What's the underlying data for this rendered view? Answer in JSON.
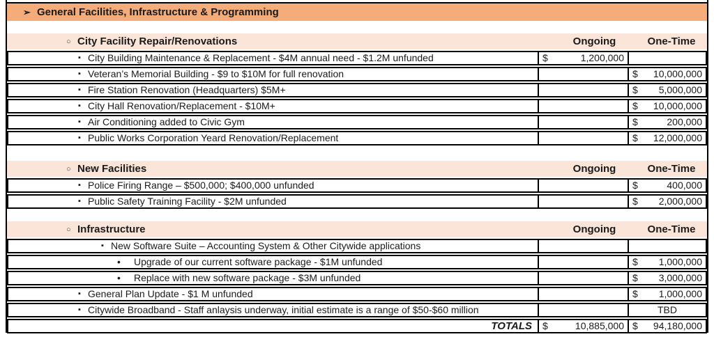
{
  "glyphs": {
    "arrow": "➢",
    "circle": "○",
    "square": "▪",
    "dot": "•"
  },
  "colors": {
    "title_band": "#F3AC7A",
    "section_band": "#FBE5D8",
    "border": "#000000"
  },
  "title": "General Facilities, Infrastructure & Programming",
  "column_headers": {
    "ongoing": "Ongoing",
    "one_time": "One-Time"
  },
  "sections": [
    {
      "header": "City Facility Repair/Renovations",
      "rows": [
        {
          "label": "City Building Maintenance & Replacement - $4M annual need - $1.2M unfunded",
          "ongoing_sym": "$",
          "ongoing_amt": "1,200,000"
        },
        {
          "label": "Veteran’s Memorial Building - $9 to $10M for full renovation",
          "onetime_sym": "$",
          "onetime_amt": "10,000,000"
        },
        {
          "label": "Fire Station Renovation (Headquarters) $5M+",
          "onetime_sym": "$",
          "onetime_amt": "5,000,000"
        },
        {
          "label": "City Hall Renovation/Replacement - $10M+",
          "onetime_sym": "$",
          "onetime_amt": "10,000,000"
        },
        {
          "label": "Air Conditioning added to Civic Gym",
          "onetime_sym": "$",
          "onetime_amt": "200,000"
        },
        {
          "label": "Public Works Corporation Yeard Renovation/Replacement",
          "onetime_sym": "$",
          "onetime_amt": "12,000,000"
        }
      ]
    },
    {
      "header": "New Facilities",
      "rows": [
        {
          "label": "Police Firing Range – $500,000; $400,000 unfunded",
          "onetime_sym": "$",
          "onetime_amt": "400,000"
        },
        {
          "label": "Public Safety Training Facility - $2M unfunded",
          "onetime_sym": "$",
          "onetime_amt": "2,000,000"
        }
      ]
    },
    {
      "header": "Infrastructure",
      "rows": [
        {
          "label": "New Software Suite – Accounting System & Other Citywide applications"
        },
        {
          "label": "Upgrade of our current software package - $1M unfunded",
          "onetime_sym": "$",
          "onetime_amt": "1,000,000"
        },
        {
          "label": "Replace with new software package - $3M unfunded",
          "onetime_sym": "$",
          "onetime_amt": "3,000,000"
        },
        {
          "label": "General Plan Update - $1 M unfunded",
          "onetime_sym": "$",
          "onetime_amt": "1,000,000"
        },
        {
          "label": "Citywide Broadband - Staff anlaysis underway, initial estimate is a range of $50-$60 million",
          "onetime_center": "TBD"
        }
      ]
    }
  ],
  "totals": {
    "label": "TOTALS",
    "ongoing_sym": "$",
    "ongoing_amt": "10,885,000",
    "onetime_sym": "$",
    "onetime_amt": "94,180,000"
  }
}
